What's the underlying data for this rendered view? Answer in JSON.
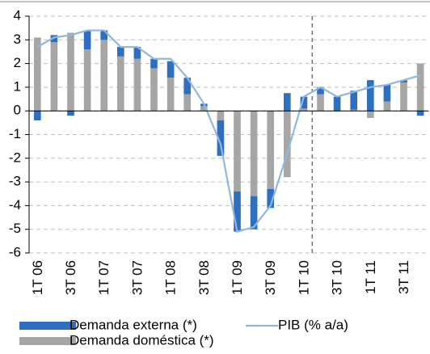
{
  "chart_data": {
    "type": "bar",
    "stacked": true,
    "categories": [
      "1T 06",
      null,
      "3T 06",
      null,
      "1T 07",
      null,
      "3T 07",
      null,
      "1T 08",
      null,
      "3T 08",
      null,
      "1T 09",
      null,
      "3T 09",
      null,
      "1T 10",
      null,
      "3T 10",
      null,
      "1T 11",
      null,
      "3T 11",
      null
    ],
    "series": [
      {
        "name": "Demanda externa (*)",
        "type": "bar",
        "color": "#2f6fbf",
        "values": [
          -0.4,
          0.3,
          -0.2,
          0.8,
          0.4,
          0.4,
          0.5,
          0.4,
          0.7,
          0.7,
          0.1,
          -1.5,
          -1.7,
          -1.4,
          -0.8,
          0.75,
          0.5,
          0.3,
          0.6,
          0.8,
          1.3,
          0.7,
          0.1,
          -0.2
        ]
      },
      {
        "name": "Demanda doméstica (*)",
        "type": "bar",
        "color": "#a6a6a6",
        "values": [
          3.1,
          2.9,
          3.3,
          2.6,
          3.0,
          2.3,
          2.2,
          1.8,
          1.4,
          0.7,
          0.2,
          -0.4,
          -3.4,
          -3.6,
          -3.3,
          -2.8,
          0.1,
          0.7,
          0.0,
          0.05,
          -0.3,
          0.4,
          1.2,
          2.0
        ]
      },
      {
        "name": "PIB (% a/a)",
        "type": "line",
        "color": "#8fb8e0",
        "values": [
          2.7,
          3.1,
          3.2,
          3.4,
          3.4,
          2.7,
          2.7,
          2.2,
          2.2,
          1.4,
          0.3,
          -1.4,
          -5.1,
          -4.9,
          -4.0,
          -1.8,
          0.6,
          1.0,
          0.6,
          0.8,
          1.0,
          1.1,
          1.3,
          1.5
        ]
      }
    ],
    "ylim": [
      -6,
      4
    ],
    "yticks": [
      -6,
      -5,
      -4,
      -3,
      -2,
      -1,
      0,
      1,
      2,
      3,
      4
    ],
    "grid": true
  }
}
